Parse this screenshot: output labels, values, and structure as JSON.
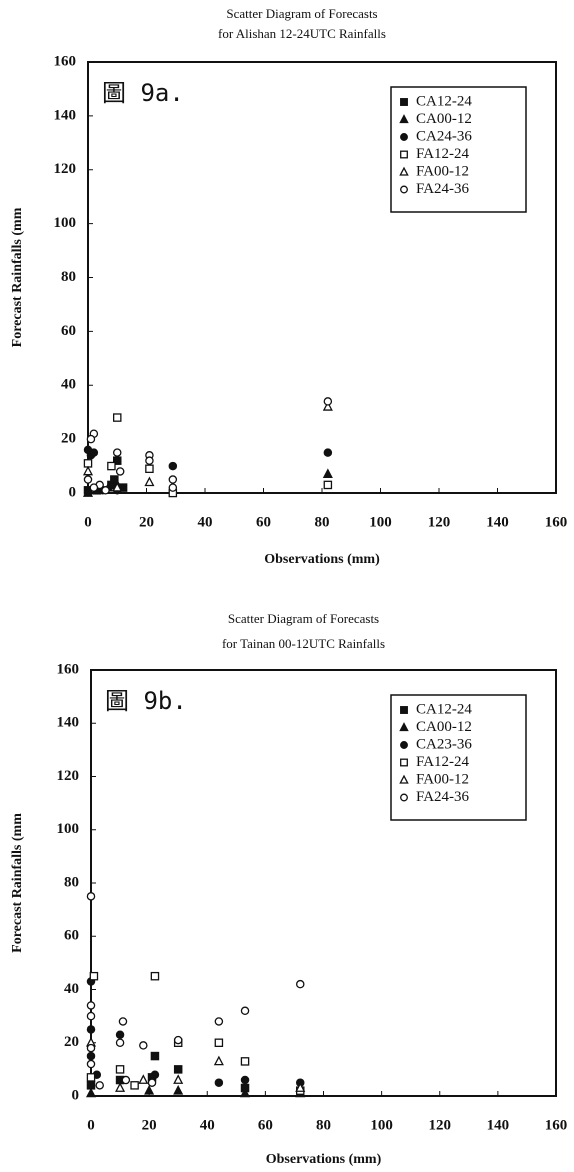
{
  "chart_data": [
    {
      "type": "scatter",
      "title": "Scatter Diagram of Forecasts",
      "subtitle": "for Alishan 12-24UTC Rainfalls",
      "annotation": "圖 9a.",
      "x_label": "Observations (mm)",
      "y_label": "Forecast Rainfalls (mm",
      "xlim": [
        0,
        160
      ],
      "ylim": [
        0,
        160
      ],
      "xticks": [
        0,
        20,
        40,
        60,
        80,
        100,
        120,
        140,
        160
      ],
      "yticks": [
        0,
        20,
        40,
        60,
        80,
        100,
        120,
        140,
        160
      ],
      "legend": "upper right",
      "series": [
        {
          "name": "CA12-24",
          "color": "#111111",
          "marker": "square",
          "filled": true,
          "x": [
            8,
            10,
            12,
            9,
            0,
            3
          ],
          "y": [
            3,
            12,
            2,
            5,
            1,
            1
          ]
        },
        {
          "name": "CA00-12",
          "color": "#111111",
          "marker": "triangle",
          "filled": true,
          "x": [
            82,
            7,
            0,
            10
          ],
          "y": [
            7,
            2,
            0,
            3
          ]
        },
        {
          "name": "CA24-36",
          "color": "#111111",
          "marker": "circle",
          "filled": true,
          "x": [
            0,
            1,
            2,
            82,
            29,
            10,
            5
          ],
          "y": [
            16,
            14,
            15,
            15,
            10,
            1,
            1
          ]
        },
        {
          "name": "FA12-24",
          "color": "#111111",
          "marker": "square",
          "filled": false,
          "x": [
            10,
            8,
            21,
            82,
            29,
            0
          ],
          "y": [
            28,
            10,
            9,
            3,
            0,
            11
          ]
        },
        {
          "name": "FA00-12",
          "color": "#111111",
          "marker": "triangle",
          "filled": false,
          "x": [
            82,
            21,
            0,
            10
          ],
          "y": [
            32,
            4,
            8,
            2
          ]
        },
        {
          "name": "FA24-36",
          "color": "#111111",
          "marker": "circle",
          "filled": false,
          "x": [
            2,
            1,
            82,
            21,
            21,
            10,
            29,
            11,
            0,
            4,
            6,
            2,
            29
          ],
          "y": [
            22,
            20,
            34,
            14,
            12,
            15,
            5,
            8,
            5,
            3,
            1,
            2,
            2
          ]
        }
      ]
    },
    {
      "type": "scatter",
      "title": "Scatter Diagram of Forecasts",
      "subtitle": "for Tainan 00-12UTC Rainfalls",
      "annotation": "圖 9b.",
      "x_label": "Observations (mm)",
      "y_label": "Forecast Rainfalls (mm",
      "xlim": [
        0,
        160
      ],
      "ylim": [
        0,
        160
      ],
      "xticks": [
        0,
        20,
        40,
        60,
        80,
        100,
        120,
        140,
        160
      ],
      "yticks": [
        0,
        20,
        40,
        60,
        80,
        100,
        120,
        140,
        160
      ],
      "legend": "upper right",
      "series": [
        {
          "name": "CA12-24",
          "color": "#111111",
          "marker": "square",
          "filled": true,
          "x": [
            22,
            30,
            0,
            10,
            21,
            53
          ],
          "y": [
            15,
            10,
            4,
            6,
            7,
            3
          ]
        },
        {
          "name": "CA00-12",
          "color": "#111111",
          "marker": "triangle",
          "filled": true,
          "x": [
            30,
            53,
            72,
            0,
            20
          ],
          "y": [
            2,
            1,
            1,
            1,
            2
          ]
        },
        {
          "name": "CA23-36",
          "color": "#111111",
          "marker": "circle",
          "filled": true,
          "x": [
            0,
            0,
            10,
            72,
            44,
            53,
            2,
            22,
            0
          ],
          "y": [
            43,
            25,
            23,
            5,
            5,
            6,
            8,
            8,
            15
          ]
        },
        {
          "name": "FA12-24",
          "color": "#111111",
          "marker": "square",
          "filled": false,
          "x": [
            1,
            22,
            44,
            53,
            30,
            10,
            0,
            72,
            15
          ],
          "y": [
            45,
            45,
            20,
            13,
            20,
            10,
            7,
            2,
            4
          ]
        },
        {
          "name": "FA00-12",
          "color": "#111111",
          "marker": "triangle",
          "filled": false,
          "x": [
            44,
            30,
            18,
            0,
            72,
            10
          ],
          "y": [
            13,
            6,
            6,
            20,
            3,
            3
          ]
        },
        {
          "name": "FA24-36",
          "color": "#111111",
          "marker": "circle",
          "filled": false,
          "x": [
            0,
            0,
            0,
            11,
            44,
            53,
            72,
            30,
            18,
            10,
            0,
            0,
            21,
            12,
            3
          ],
          "y": [
            75,
            34,
            30,
            28,
            28,
            32,
            42,
            21,
            19,
            20,
            18,
            12,
            5,
            6,
            4
          ]
        }
      ]
    }
  ]
}
